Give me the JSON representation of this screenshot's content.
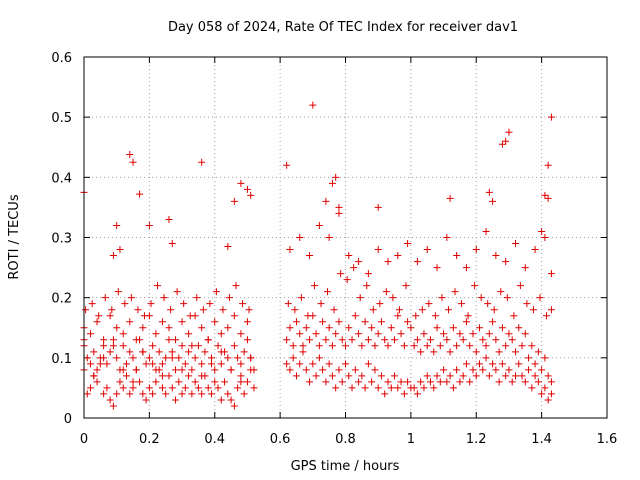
{
  "chart_data": {
    "type": "scatter",
    "title": "Day 058 of 2024, Rate Of TEC Index for receiver dav1",
    "xlabel": "GPS time / hours",
    "ylabel": "ROTI / TECUs",
    "xlim": [
      0,
      1.6
    ],
    "ylim": [
      0,
      0.6
    ],
    "xticks": [
      0,
      0.2,
      0.4,
      0.6,
      0.8,
      1.0,
      1.2,
      1.4,
      1.6
    ],
    "xtick_labels": [
      "0",
      "0.2",
      "0.4",
      "0.6",
      "0.8",
      "1",
      "1.2",
      "1.4",
      "1.6"
    ],
    "yticks": [
      0,
      0.1,
      0.2,
      0.3,
      0.4,
      0.5,
      0.6
    ],
    "ytick_labels": [
      "0",
      "0.1",
      "0.2",
      "0.3",
      "0.4",
      "0.5",
      "0.6"
    ],
    "grid": true,
    "marker": "+",
    "marker_color": "#e00000",
    "series": [
      {
        "name": "dav1",
        "x": [
          0.0,
          0.01,
          0.02,
          0.03,
          0.04,
          0.05,
          0.06,
          0.07,
          0.08,
          0.09,
          0.1,
          0.11,
          0.12,
          0.13,
          0.14,
          0.15,
          0.16,
          0.17,
          0.18,
          0.19,
          0.2,
          0.21,
          0.22,
          0.23,
          0.24,
          0.25,
          0.26,
          0.27,
          0.28,
          0.29,
          0.3,
          0.31,
          0.32,
          0.33,
          0.34,
          0.35,
          0.36,
          0.37,
          0.38,
          0.39,
          0.4,
          0.41,
          0.42,
          0.43,
          0.44,
          0.45,
          0.46,
          0.47,
          0.48,
          0.49,
          0.5,
          0.51,
          0.52,
          0.0,
          0.01,
          0.02,
          0.03,
          0.04,
          0.05,
          0.06,
          0.07,
          0.08,
          0.09,
          0.1,
          0.11,
          0.12,
          0.13,
          0.14,
          0.15,
          0.16,
          0.17,
          0.18,
          0.19,
          0.2,
          0.21,
          0.22,
          0.23,
          0.24,
          0.25,
          0.26,
          0.27,
          0.28,
          0.29,
          0.3,
          0.31,
          0.32,
          0.33,
          0.34,
          0.35,
          0.36,
          0.37,
          0.38,
          0.39,
          0.4,
          0.41,
          0.42,
          0.43,
          0.44,
          0.45,
          0.46,
          0.47,
          0.48,
          0.49,
          0.5,
          0.51,
          0.52,
          0.0,
          0.02,
          0.04,
          0.06,
          0.08,
          0.1,
          0.12,
          0.14,
          0.16,
          0.18,
          0.2,
          0.22,
          0.24,
          0.26,
          0.28,
          0.3,
          0.32,
          0.34,
          0.36,
          0.38,
          0.4,
          0.42,
          0.44,
          0.46,
          0.48,
          0.5,
          0.005,
          0.025,
          0.045,
          0.065,
          0.085,
          0.105,
          0.125,
          0.145,
          0.165,
          0.185,
          0.205,
          0.225,
          0.245,
          0.265,
          0.285,
          0.305,
          0.325,
          0.345,
          0.365,
          0.385,
          0.405,
          0.425,
          0.445,
          0.465,
          0.485,
          0.505,
          0.0,
          0.03,
          0.06,
          0.09,
          0.12,
          0.15,
          0.18,
          0.21,
          0.24,
          0.27,
          0.3,
          0.33,
          0.36,
          0.39,
          0.42,
          0.45,
          0.48,
          0.51,
          0.0,
          0.1,
          0.14,
          0.15,
          0.17,
          0.26,
          0.36,
          0.46,
          0.48,
          0.5,
          0.51,
          0.2,
          0.09,
          0.11,
          0.44,
          0.27,
          0.62,
          0.63,
          0.64,
          0.65,
          0.66,
          0.67,
          0.68,
          0.69,
          0.7,
          0.71,
          0.72,
          0.73,
          0.74,
          0.75,
          0.76,
          0.77,
          0.78,
          0.79,
          0.8,
          0.81,
          0.82,
          0.83,
          0.84,
          0.85,
          0.86,
          0.87,
          0.88,
          0.89,
          0.9,
          0.91,
          0.92,
          0.93,
          0.94,
          0.95,
          0.96,
          0.97,
          0.98,
          0.99,
          1.0,
          0.62,
          0.63,
          0.64,
          0.65,
          0.66,
          0.67,
          0.68,
          0.69,
          0.7,
          0.71,
          0.72,
          0.73,
          0.74,
          0.75,
          0.76,
          0.77,
          0.78,
          0.79,
          0.8,
          0.81,
          0.82,
          0.83,
          0.84,
          0.85,
          0.86,
          0.87,
          0.88,
          0.89,
          0.9,
          0.91,
          0.92,
          0.93,
          0.94,
          0.95,
          0.96,
          0.97,
          0.98,
          0.99,
          1.0,
          0.625,
          0.645,
          0.665,
          0.685,
          0.705,
          0.725,
          0.745,
          0.765,
          0.785,
          0.805,
          0.825,
          0.845,
          0.865,
          0.885,
          0.905,
          0.925,
          0.945,
          0.965,
          0.985,
          0.63,
          0.66,
          0.69,
          0.72,
          0.75,
          0.78,
          0.81,
          0.84,
          0.87,
          0.9,
          0.93,
          0.96,
          0.99,
          1.01,
          1.02,
          1.03,
          1.04,
          1.05,
          1.06,
          1.07,
          1.08,
          1.09,
          1.1,
          1.11,
          1.12,
          1.13,
          1.14,
          1.15,
          1.16,
          1.17,
          1.18,
          1.19,
          1.2,
          1.21,
          1.22,
          1.23,
          1.24,
          1.25,
          1.26,
          1.27,
          1.28,
          1.29,
          1.3,
          1.31,
          1.32,
          1.33,
          1.34,
          1.35,
          1.36,
          1.37,
          1.38,
          1.39,
          1.4,
          1.41,
          1.42,
          1.43,
          1.01,
          1.02,
          1.03,
          1.04,
          1.05,
          1.06,
          1.07,
          1.08,
          1.09,
          1.1,
          1.11,
          1.12,
          1.13,
          1.14,
          1.15,
          1.16,
          1.17,
          1.18,
          1.19,
          1.2,
          1.21,
          1.22,
          1.23,
          1.24,
          1.25,
          1.26,
          1.27,
          1.28,
          1.29,
          1.3,
          1.31,
          1.32,
          1.33,
          1.34,
          1.35,
          1.36,
          1.37,
          1.38,
          1.39,
          1.4,
          1.41,
          1.42,
          1.43,
          1.015,
          1.035,
          1.055,
          1.075,
          1.095,
          1.115,
          1.135,
          1.155,
          1.175,
          1.195,
          1.215,
          1.235,
          1.255,
          1.275,
          1.295,
          1.315,
          1.335,
          1.355,
          1.375,
          1.395,
          1.415,
          1.43,
          1.02,
          1.05,
          1.08,
          1.11,
          1.14,
          1.17,
          1.2,
          1.23,
          1.26,
          1.29,
          1.32,
          1.35,
          1.38,
          1.41,
          1.43,
          0.62,
          0.7,
          0.76,
          0.77,
          0.78,
          1.28,
          1.29,
          1.3,
          1.42,
          1.43,
          1.41,
          1.24,
          1.25,
          1.12,
          0.9,
          0.74,
          1.4,
          1.42
        ],
        "y": [
          0.08,
          0.04,
          0.05,
          0.07,
          0.06,
          0.09,
          0.04,
          0.05,
          0.03,
          0.02,
          0.04,
          0.06,
          0.05,
          0.07,
          0.04,
          0.05,
          0.08,
          0.06,
          0.04,
          0.03,
          0.05,
          0.04,
          0.06,
          0.08,
          0.05,
          0.04,
          0.07,
          0.05,
          0.03,
          0.06,
          0.04,
          0.05,
          0.07,
          0.04,
          0.06,
          0.05,
          0.04,
          0.07,
          0.05,
          0.04,
          0.06,
          0.05,
          0.03,
          0.06,
          0.04,
          0.03,
          0.02,
          0.05,
          0.07,
          0.04,
          0.06,
          0.08,
          0.05,
          0.12,
          0.1,
          0.09,
          0.11,
          0.08,
          0.1,
          0.12,
          0.09,
          0.11,
          0.13,
          0.1,
          0.08,
          0.12,
          0.09,
          0.11,
          0.1,
          0.08,
          0.13,
          0.11,
          0.09,
          0.1,
          0.12,
          0.08,
          0.11,
          0.09,
          0.1,
          0.13,
          0.11,
          0.08,
          0.1,
          0.12,
          0.09,
          0.11,
          0.08,
          0.1,
          0.12,
          0.09,
          0.11,
          0.13,
          0.1,
          0.08,
          0.12,
          0.09,
          0.11,
          0.1,
          0.08,
          0.12,
          0.1,
          0.09,
          0.11,
          0.13,
          0.1,
          0.08,
          0.15,
          0.14,
          0.16,
          0.13,
          0.17,
          0.15,
          0.14,
          0.16,
          0.13,
          0.15,
          0.17,
          0.14,
          0.16,
          0.15,
          0.13,
          0.16,
          0.14,
          0.17,
          0.15,
          0.13,
          0.16,
          0.14,
          0.15,
          0.17,
          0.14,
          0.16,
          0.18,
          0.19,
          0.17,
          0.2,
          0.18,
          0.21,
          0.19,
          0.2,
          0.18,
          0.17,
          0.19,
          0.22,
          0.2,
          0.18,
          0.21,
          0.19,
          0.17,
          0.2,
          0.18,
          0.19,
          0.21,
          0.18,
          0.2,
          0.22,
          0.19,
          0.18,
          0.13,
          0.07,
          0.1,
          0.12,
          0.08,
          0.06,
          0.11,
          0.09,
          0.07,
          0.1,
          0.08,
          0.12,
          0.07,
          0.09,
          0.11,
          0.08,
          0.06,
          0.1,
          0.375,
          0.32,
          0.438,
          0.425,
          0.372,
          0.33,
          0.425,
          0.36,
          0.39,
          0.38,
          0.37,
          0.32,
          0.27,
          0.28,
          0.285,
          0.29,
          0.09,
          0.08,
          0.1,
          0.07,
          0.09,
          0.11,
          0.08,
          0.06,
          0.09,
          0.07,
          0.1,
          0.08,
          0.06,
          0.09,
          0.07,
          0.05,
          0.08,
          0.06,
          0.09,
          0.07,
          0.05,
          0.08,
          0.06,
          0.07,
          0.05,
          0.09,
          0.06,
          0.08,
          0.05,
          0.07,
          0.04,
          0.06,
          0.05,
          0.07,
          0.05,
          0.06,
          0.04,
          0.06,
          0.05,
          0.13,
          0.15,
          0.12,
          0.16,
          0.14,
          0.12,
          0.15,
          0.13,
          0.17,
          0.14,
          0.12,
          0.16,
          0.13,
          0.15,
          0.12,
          0.14,
          0.16,
          0.13,
          0.12,
          0.15,
          0.13,
          0.17,
          0.14,
          0.12,
          0.16,
          0.13,
          0.15,
          0.12,
          0.14,
          0.16,
          0.13,
          0.12,
          0.15,
          0.13,
          0.17,
          0.14,
          0.12,
          0.16,
          0.15,
          0.19,
          0.18,
          0.2,
          0.17,
          0.22,
          0.19,
          0.21,
          0.18,
          0.24,
          0.23,
          0.25,
          0.2,
          0.22,
          0.18,
          0.19,
          0.21,
          0.2,
          0.18,
          0.22,
          0.28,
          0.3,
          0.27,
          0.32,
          0.3,
          0.34,
          0.27,
          0.26,
          0.24,
          0.28,
          0.26,
          0.27,
          0.29,
          0.05,
          0.04,
          0.06,
          0.05,
          0.07,
          0.06,
          0.05,
          0.07,
          0.06,
          0.08,
          0.06,
          0.07,
          0.05,
          0.08,
          0.06,
          0.07,
          0.09,
          0.06,
          0.08,
          0.07,
          0.09,
          0.08,
          0.1,
          0.07,
          0.09,
          0.08,
          0.06,
          0.09,
          0.07,
          0.08,
          0.06,
          0.07,
          0.09,
          0.07,
          0.06,
          0.08,
          0.05,
          0.07,
          0.06,
          0.04,
          0.05,
          0.03,
          0.04,
          0.12,
          0.13,
          0.11,
          0.14,
          0.12,
          0.13,
          0.11,
          0.15,
          0.12,
          0.14,
          0.13,
          0.11,
          0.15,
          0.12,
          0.14,
          0.13,
          0.16,
          0.12,
          0.14,
          0.11,
          0.15,
          0.13,
          0.12,
          0.14,
          0.16,
          0.13,
          0.11,
          0.15,
          0.12,
          0.14,
          0.13,
          0.11,
          0.15,
          0.12,
          0.14,
          0.1,
          0.12,
          0.09,
          0.11,
          0.08,
          0.1,
          0.07,
          0.06,
          0.17,
          0.18,
          0.19,
          0.17,
          0.2,
          0.18,
          0.21,
          0.19,
          0.17,
          0.22,
          0.2,
          0.19,
          0.18,
          0.21,
          0.2,
          0.17,
          0.22,
          0.19,
          0.18,
          0.2,
          0.17,
          0.18,
          0.26,
          0.28,
          0.25,
          0.3,
          0.27,
          0.25,
          0.28,
          0.31,
          0.27,
          0.26,
          0.29,
          0.25,
          0.28,
          0.3,
          0.24,
          0.42,
          0.52,
          0.39,
          0.4,
          0.35,
          0.455,
          0.46,
          0.475,
          0.42,
          0.5,
          0.37,
          0.375,
          0.36,
          0.365,
          0.35,
          0.36,
          0.31,
          0.365
        ]
      }
    ]
  }
}
